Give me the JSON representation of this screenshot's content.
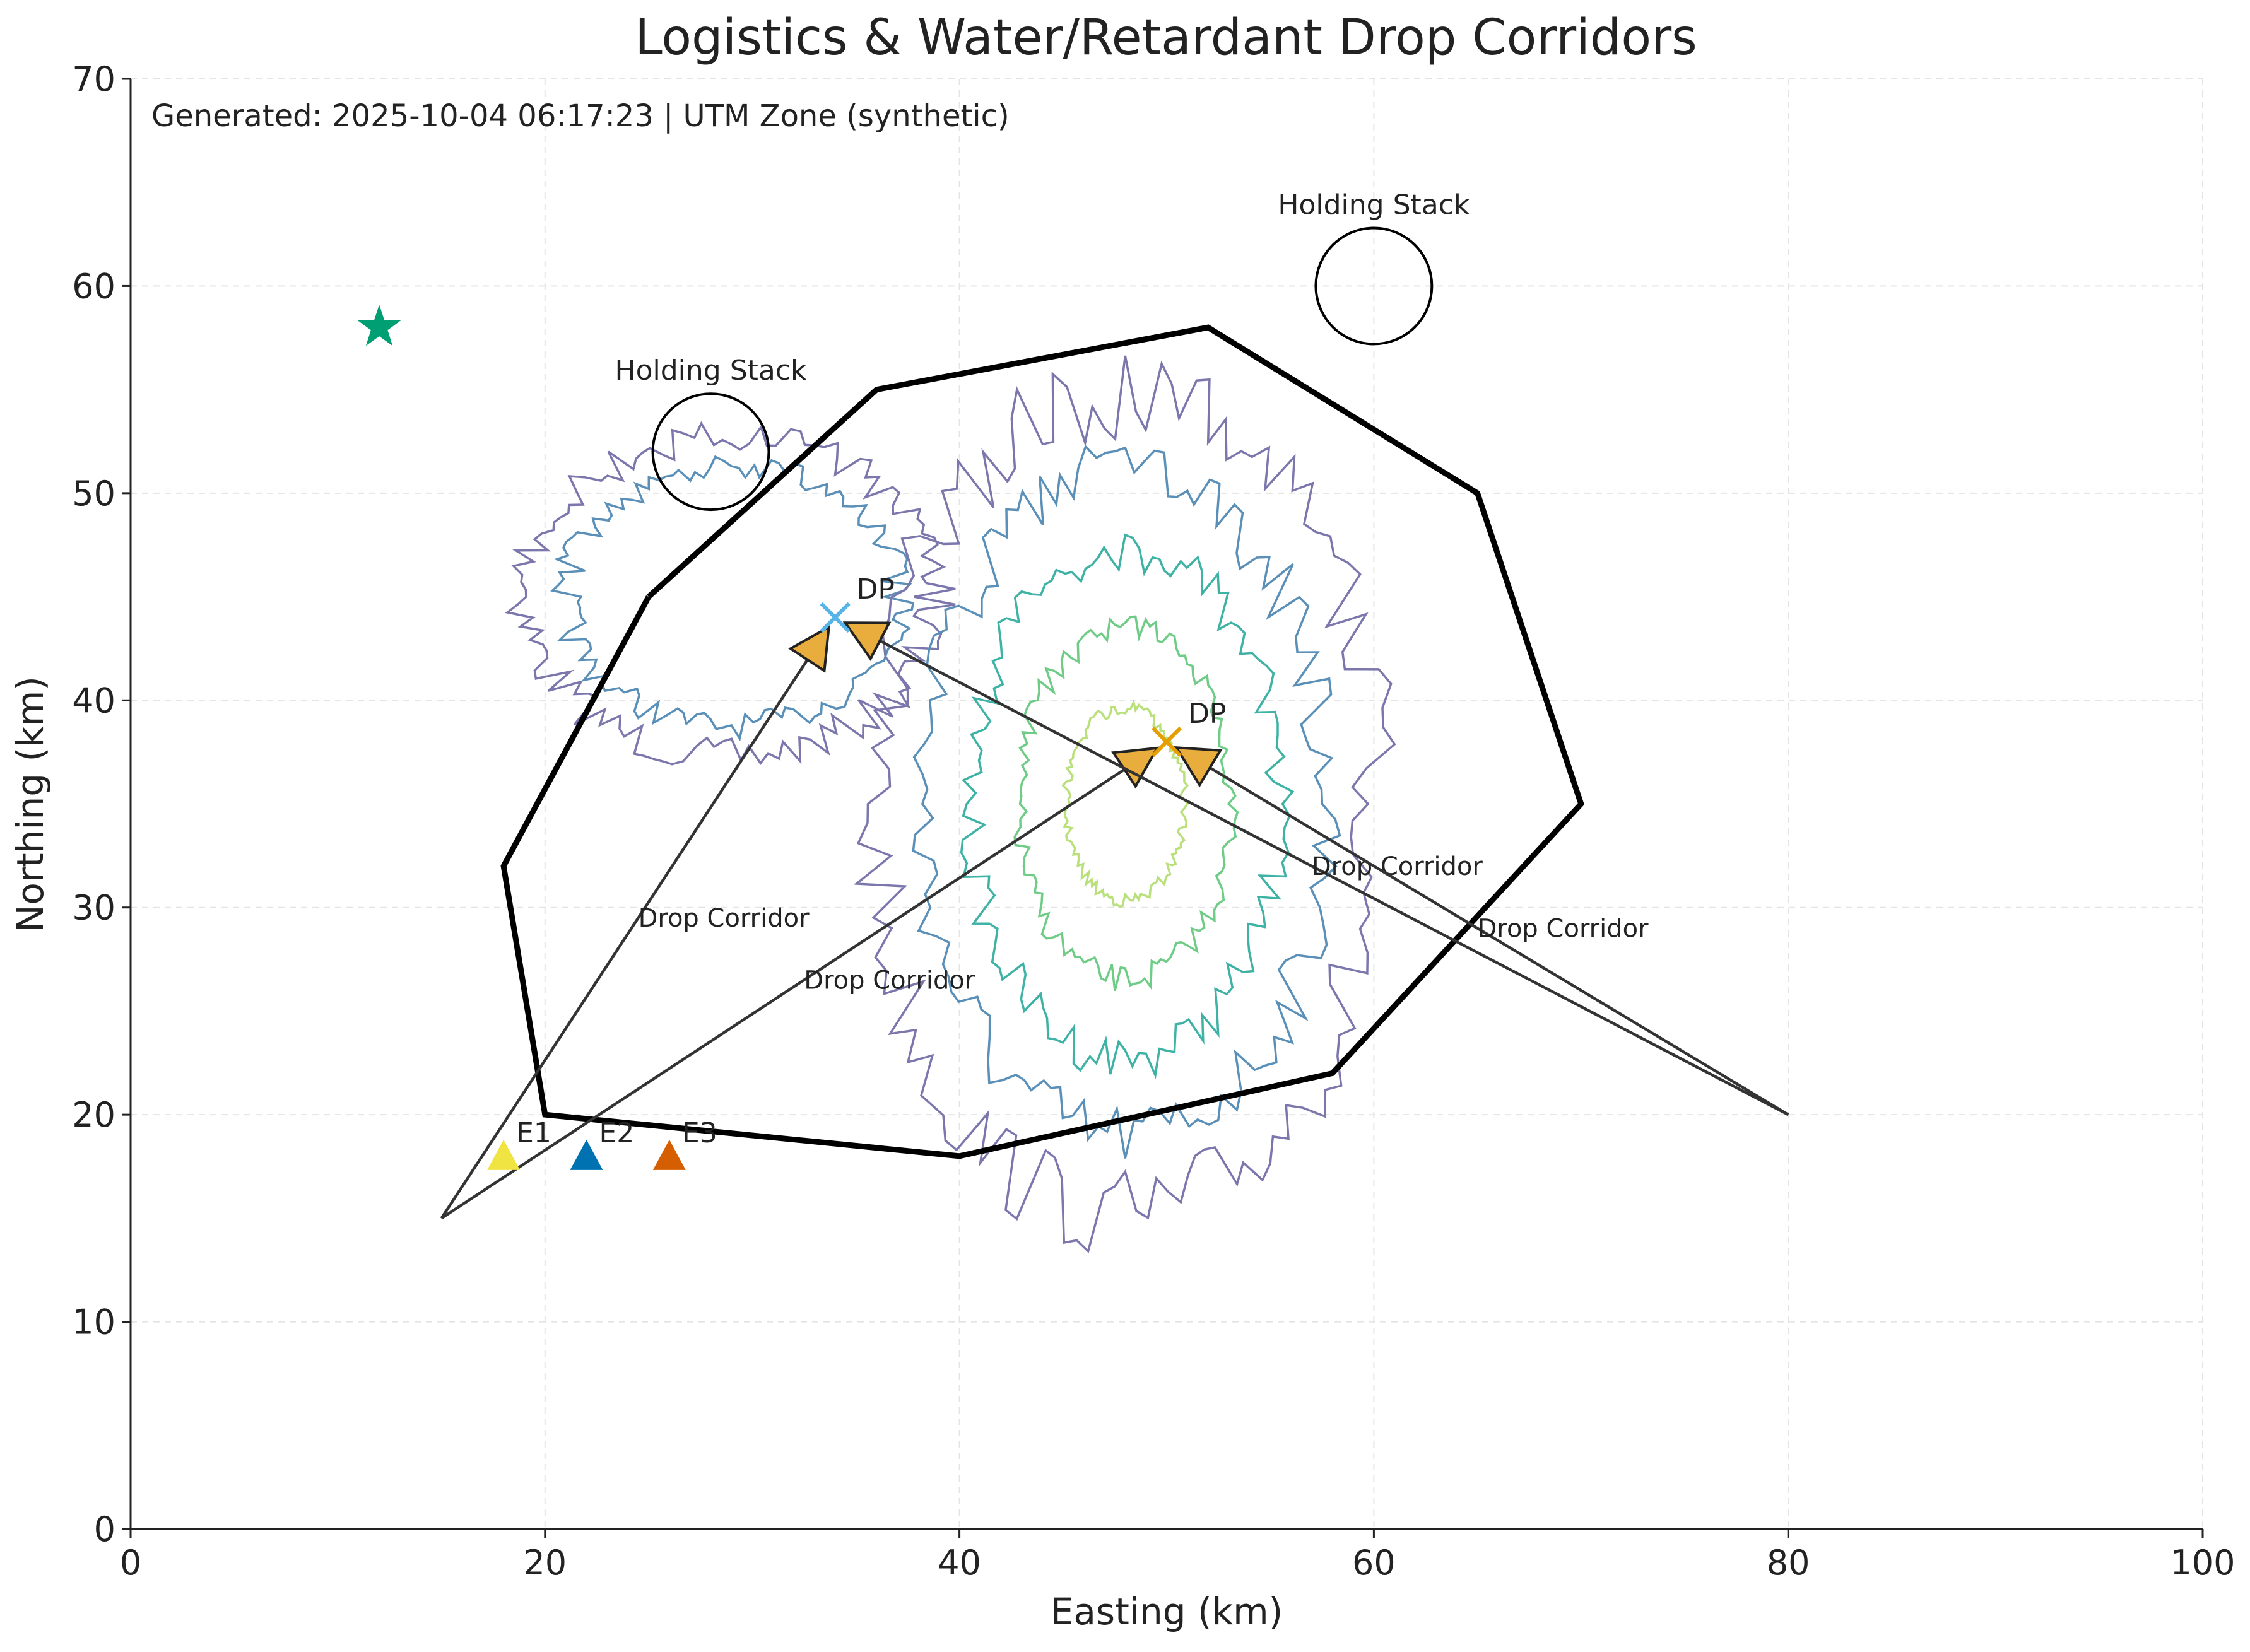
{
  "header": {
    "generated": "Generated: 2025-10-04 06:17:23 | UTM Zone (synthetic)"
  },
  "chart_data": {
    "type": "scatter",
    "title": "Logistics & Water/Retardant Drop Corridors",
    "xlabel": "Easting (km)",
    "ylabel": "Northing (km)",
    "xlim": [
      0,
      100
    ],
    "ylim": [
      0,
      70
    ],
    "xticks": [
      0,
      20,
      40,
      60,
      80,
      100
    ],
    "yticks": [
      0,
      10,
      20,
      30,
      40,
      50,
      60,
      70
    ],
    "grid": true,
    "perimeter": [
      [
        25,
        45
      ],
      [
        36,
        55
      ],
      [
        52,
        58
      ],
      [
        65,
        50
      ],
      [
        70,
        35
      ],
      [
        58,
        22
      ],
      [
        40,
        18
      ],
      [
        20,
        20
      ],
      [
        18,
        32
      ],
      [
        25,
        45
      ]
    ],
    "holding_stacks": [
      {
        "label": "Holding Stack",
        "x": 28,
        "y": 52,
        "r": 2.8
      },
      {
        "label": "Holding Stack",
        "x": 60,
        "y": 60,
        "r": 2.8
      }
    ],
    "base_marker": {
      "x": 12,
      "y": 58,
      "color": "#009e73",
      "icon": "star"
    },
    "engines": [
      {
        "label": "E1",
        "x": 18,
        "y": 18,
        "color": "#f0e442"
      },
      {
        "label": "E2",
        "x": 22,
        "y": 18,
        "color": "#0072b2"
      },
      {
        "label": "E3",
        "x": 26,
        "y": 18,
        "color": "#d55e00"
      }
    ],
    "drop_points": [
      {
        "label": "DP",
        "x": 34,
        "y": 44,
        "color": "#56b4e9"
      },
      {
        "label": "DP",
        "x": 50,
        "y": 38,
        "color": "#e69f00"
      }
    ],
    "corridors": [
      {
        "label": "Drop Corridor",
        "from": [
          15,
          15
        ],
        "to": [
          34,
          44
        ]
      },
      {
        "label": "Drop Corridor",
        "from": [
          15,
          15
        ],
        "to": [
          50,
          38
        ]
      },
      {
        "label": "Drop Corridor",
        "from": [
          80,
          20
        ],
        "to": [
          34,
          44
        ]
      },
      {
        "label": "Drop Corridor",
        "from": [
          80,
          20
        ],
        "to": [
          50,
          38
        ]
      }
    ],
    "arrow_color": "#e8ad3c",
    "density_sources": [
      {
        "x": 29,
        "y": 45,
        "sx": 4.5,
        "sy": 3.5,
        "levels": 2
      },
      {
        "x": 48,
        "y": 35,
        "sx": 5.5,
        "sy": 9,
        "levels": 5
      }
    ],
    "contour_colors": [
      "#7b77ad",
      "#5a8fb8",
      "#3eb2a5",
      "#6fcc86",
      "#b9e07a"
    ]
  }
}
